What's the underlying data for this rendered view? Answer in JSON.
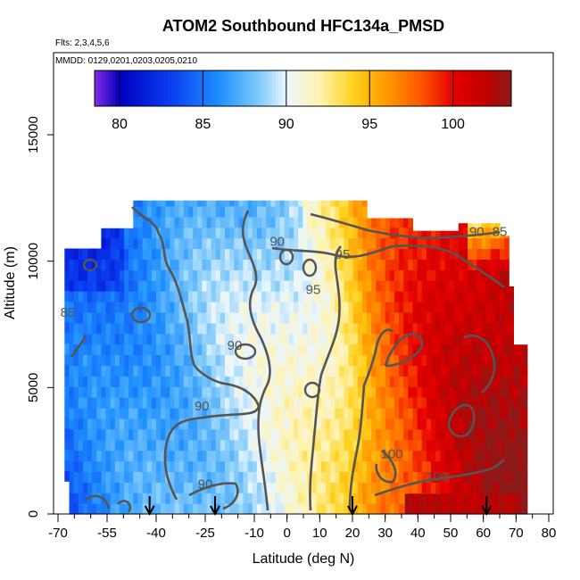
{
  "chart_data": {
    "type": "heatmap",
    "title": "ATOM2 Southbound HFC134a_PMSD",
    "subtitle_flights": "Flts: 2,3,4,5,6",
    "subtitle_dates": "MMDD: 0129,0201,0203,0205,0210",
    "xlabel": "Latitude (deg N)",
    "ylabel": "Altitude (m)",
    "xlim": [
      -70,
      80
    ],
    "ylim": [
      0,
      17500
    ],
    "x_ticks_major": [
      "-70",
      "-55",
      "-40",
      "-25",
      "-10",
      "0",
      "10",
      "20",
      "30",
      "40",
      "50",
      "60",
      "70",
      "80"
    ],
    "x_tick_values": [
      -70,
      -55,
      -40,
      -25,
      -10,
      0,
      10,
      20,
      30,
      40,
      50,
      60,
      70,
      80
    ],
    "y_ticks": [
      "0",
      "5000",
      "10000",
      "15000"
    ],
    "y_tick_values": [
      0,
      5000,
      10000,
      15000
    ],
    "colorbar": {
      "range": [
        78.5,
        103.5
      ],
      "ticks": [
        "80",
        "85",
        "90",
        "95",
        "100"
      ],
      "tick_values": [
        80,
        85,
        90,
        95,
        100
      ],
      "stops": [
        {
          "v": 78.5,
          "c": "#8a2be2"
        },
        {
          "v": 80,
          "c": "#0000c0"
        },
        {
          "v": 83,
          "c": "#0a3cf0"
        },
        {
          "v": 86,
          "c": "#1e90ff"
        },
        {
          "v": 88.5,
          "c": "#87cefa"
        },
        {
          "v": 90,
          "c": "#eaf6ff"
        },
        {
          "v": 92,
          "c": "#fff3b0"
        },
        {
          "v": 94,
          "c": "#ffd21e"
        },
        {
          "v": 96,
          "c": "#ff9a00"
        },
        {
          "v": 98,
          "c": "#ff5a00"
        },
        {
          "v": 100,
          "c": "#e60000"
        },
        {
          "v": 102,
          "c": "#c00000"
        },
        {
          "v": 103.5,
          "c": "#8b1a1a"
        }
      ]
    },
    "contour_labels": [
      {
        "text": "90",
        "x": -3,
        "y": 10600
      },
      {
        "text": "95",
        "x": 17,
        "y": 10100
      },
      {
        "text": "95",
        "x": 8,
        "y": 8700
      },
      {
        "text": "90",
        "x": 58,
        "y": 11000
      },
      {
        "text": "85",
        "x": 65,
        "y": 11000
      },
      {
        "text": "85",
        "x": -67,
        "y": 7800
      },
      {
        "text": "90",
        "x": -16,
        "y": 6500
      },
      {
        "text": "90",
        "x": -26,
        "y": 4100
      },
      {
        "text": "90",
        "x": -25,
        "y": 1000
      },
      {
        "text": "100",
        "x": 32,
        "y": 2200
      },
      {
        "text": "100",
        "x": 46,
        "y": 1300
      }
    ],
    "flight_markers_lat": [
      -42,
      -22,
      20,
      61
    ],
    "grid": false
  }
}
